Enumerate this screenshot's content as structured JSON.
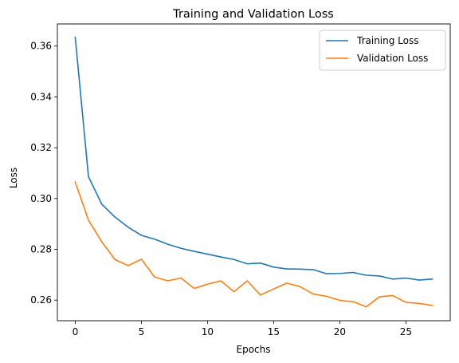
{
  "chart_data": {
    "type": "line",
    "title": "Training and Validation Loss",
    "xlabel": "Epochs",
    "ylabel": "Loss",
    "xlim": [
      -1.35,
      28.35
    ],
    "ylim": [
      0.2519,
      0.3687
    ],
    "xticks": [
      0,
      5,
      10,
      15,
      20,
      25
    ],
    "xtick_labels": [
      "0",
      "5",
      "10",
      "15",
      "20",
      "25"
    ],
    "yticks": [
      0.26,
      0.28,
      0.3,
      0.32,
      0.34,
      0.36
    ],
    "ytick_labels": [
      "0.26",
      "0.28",
      "0.30",
      "0.32",
      "0.34",
      "0.36"
    ],
    "grid": false,
    "legend_position": "top-right",
    "x": [
      0,
      1,
      2,
      3,
      4,
      5,
      6,
      7,
      8,
      9,
      10,
      11,
      12,
      13,
      14,
      15,
      16,
      17,
      18,
      19,
      20,
      21,
      22,
      23,
      24,
      25,
      26,
      27
    ],
    "series": [
      {
        "name": "Training Loss",
        "color": "#1f77b4",
        "values": [
          0.3634,
          0.3086,
          0.2978,
          0.2927,
          0.2887,
          0.2855,
          0.284,
          0.282,
          0.2804,
          0.2792,
          0.2781,
          0.277,
          0.276,
          0.2743,
          0.2746,
          0.273,
          0.2723,
          0.2722,
          0.272,
          0.2704,
          0.2705,
          0.2709,
          0.2698,
          0.2695,
          0.2683,
          0.2687,
          0.2679,
          0.2683
        ]
      },
      {
        "name": "Validation Loss",
        "color": "#ff7f0e",
        "values": [
          0.3065,
          0.2915,
          0.283,
          0.276,
          0.2736,
          0.2761,
          0.2691,
          0.2676,
          0.2687,
          0.2646,
          0.2663,
          0.2676,
          0.2633,
          0.2676,
          0.262,
          0.2644,
          0.2667,
          0.2653,
          0.2624,
          0.2615,
          0.2599,
          0.2594,
          0.2574,
          0.2613,
          0.2618,
          0.2591,
          0.2587,
          0.2579
        ]
      }
    ]
  }
}
